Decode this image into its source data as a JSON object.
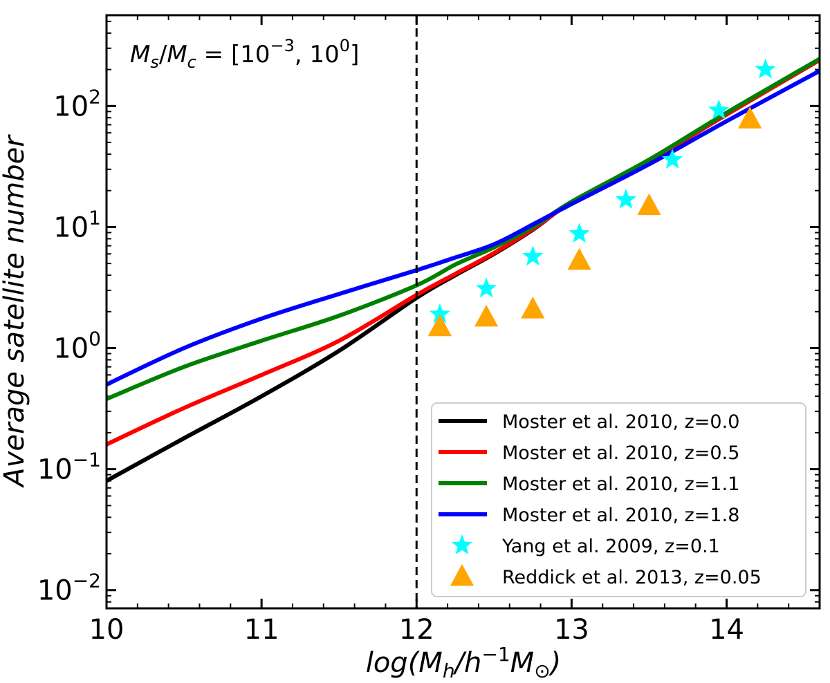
{
  "chart_data": {
    "type": "line",
    "title": "",
    "xlabel_parts": {
      "pre": "log(M",
      "sub1": "h",
      "mid": "/h",
      "sup": "−1",
      "m2": "M",
      "sub2": "⊙",
      "post": ")"
    },
    "ylabel": "Average satellite number",
    "annotation": {
      "lhs": "M",
      "lhs_sub": "s",
      "slash": "/",
      "rhs": "M",
      "rhs_sub": "c",
      "eq": " = [10",
      "sup1": "−3",
      "comma": ", 10",
      "sup2": "0",
      "close": "]"
    },
    "xlim": [
      10,
      14.6
    ],
    "ylim_log10": [
      -2.15,
      2.75
    ],
    "yscale": "log",
    "x_ticks": [
      10,
      11,
      12,
      13,
      14
    ],
    "x_tick_labels": [
      "10",
      "11",
      "12",
      "13",
      "14"
    ],
    "y_ticks_log10": [
      -2,
      -1,
      0,
      1,
      2
    ],
    "y_tick_base": "10",
    "y_tick_exps": [
      "−2",
      "−1",
      "0",
      "1",
      "2"
    ],
    "vline_x": 12,
    "series": [
      {
        "name": "Moster et al. 2010, z=0.0",
        "color": "#000000",
        "x": [
          10,
          10.5,
          11,
          11.5,
          12,
          12.25,
          12.5,
          12.75,
          13,
          13.5,
          14,
          14.6
        ],
        "y": [
          0.08,
          0.18,
          0.4,
          0.95,
          2.6,
          4.0,
          6.0,
          9.5,
          16.0,
          35.0,
          85.0,
          240.0
        ]
      },
      {
        "name": "Moster et al. 2010, z=0.5",
        "color": "#ff0000",
        "x": [
          10,
          10.5,
          11,
          11.5,
          12,
          12.25,
          12.5,
          12.75,
          13,
          13.5,
          14,
          14.6
        ],
        "y": [
          0.16,
          0.32,
          0.6,
          1.15,
          2.75,
          4.1,
          6.1,
          9.6,
          16.0,
          35.0,
          85.0,
          240.0
        ]
      },
      {
        "name": "Moster et al. 2010, z=1.1",
        "color": "#008000",
        "x": [
          10,
          10.5,
          11,
          11.5,
          12,
          12.25,
          12.5,
          12.75,
          13,
          13.5,
          14,
          14.6
        ],
        "y": [
          0.38,
          0.7,
          1.15,
          1.85,
          3.3,
          4.9,
          6.8,
          10.0,
          16.2,
          36.0,
          88.0,
          245.0
        ]
      },
      {
        "name": "Moster et al. 2010, z=1.8",
        "color": "#0000ff",
        "x": [
          10,
          10.5,
          11,
          11.5,
          12,
          12.25,
          12.5,
          12.75,
          13,
          13.5,
          14,
          14.6
        ],
        "y": [
          0.5,
          1.0,
          1.75,
          2.8,
          4.4,
          5.6,
          7.2,
          10.5,
          15.5,
          33.0,
          75.0,
          195.0
        ]
      }
    ],
    "scatter": [
      {
        "name": "Yang et al. 2009, z=0.1",
        "color": "#00ffff",
        "marker": "star",
        "x": [
          12.15,
          12.45,
          12.75,
          13.05,
          13.35,
          13.65,
          13.95,
          14.25
        ],
        "y": [
          1.9,
          3.1,
          5.7,
          8.8,
          16.8,
          36.0,
          92.0,
          200.0
        ]
      },
      {
        "name": "Reddick et al. 2013, z=0.05",
        "color": "#ffa500",
        "marker": "triangle",
        "x": [
          12.15,
          12.45,
          12.75,
          13.05,
          13.5,
          14.15
        ],
        "y": [
          1.5,
          1.8,
          2.1,
          5.3,
          15.0,
          78.0
        ]
      }
    ],
    "legend_position": "lower-right"
  }
}
